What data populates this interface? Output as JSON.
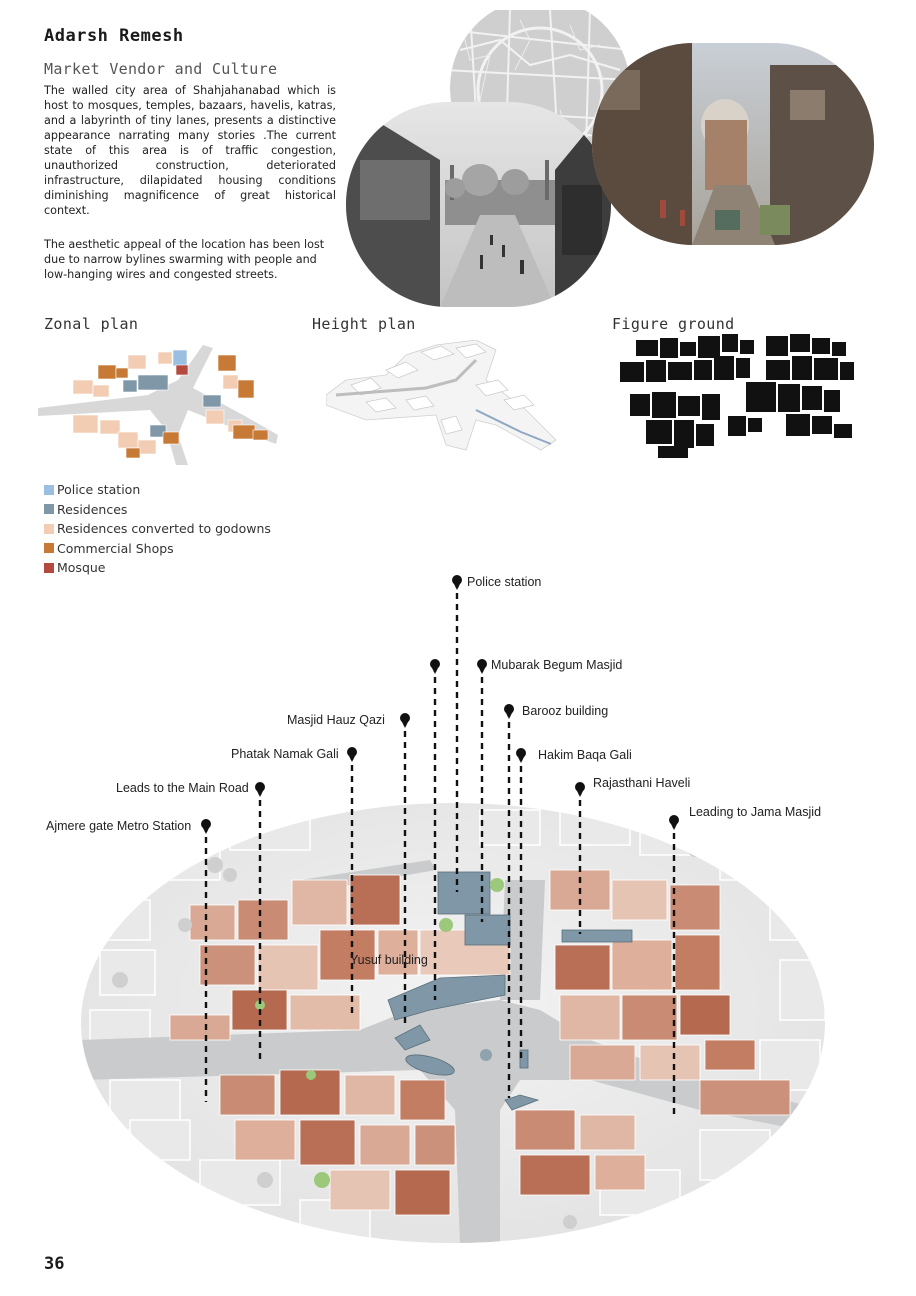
{
  "header": {
    "author": "Adarsh Remesh",
    "subtitle": "Market Vendor and Culture"
  },
  "body": {
    "paragraph_1": "The walled city area of Shahjahanabad which is host to mosques, temples, bazaars, havelis, katras, and a labyrinth of tiny lanes, presents a distinctive appearance narrating many stories .The current state of this area is of traffic congestion, unauthorized construction, deteriorated infrastructure, dilapidated housing conditions diminishing magnificence of great historical context.",
    "paragraph_2": "The aesthetic appeal of the location has been lost due to narrow bylines swarming with people and low-hanging wires and congested streets."
  },
  "plans": {
    "zonal_title": "Zonal plan",
    "height_title": "Height plan",
    "figure_title": "Figure ground"
  },
  "legend": [
    {
      "label": "Police station",
      "color": "#9bbfe0"
    },
    {
      "label": "Residences",
      "color": "#7f97a6"
    },
    {
      "label": "Residences converted to godowns",
      "color": "#f2cdb4"
    },
    {
      "label": "Commercial Shops",
      "color": "#c77a35"
    },
    {
      "label": "Mosque",
      "color": "#b4493f"
    }
  ],
  "map_labels": {
    "police_station": "Police station",
    "mubarak_begum": "Mubarak Begum Masjid",
    "barooz": "Barooz building",
    "masjid_hauz_qazi": "Masjid Hauz Qazi",
    "hakim_baqa": "Hakim Baqa Gali",
    "phatak_namak": "Phatak Namak Gali",
    "rajasthani_haveli": "Rajasthani Haveli",
    "leads_main_road": "Leads to the Main Road",
    "leading_jama": "Leading to Jama Masjid",
    "ajmere_gate": "Ajmere gate Metro Station",
    "yusuf_building": "Yusuf building"
  },
  "page_number": "36"
}
